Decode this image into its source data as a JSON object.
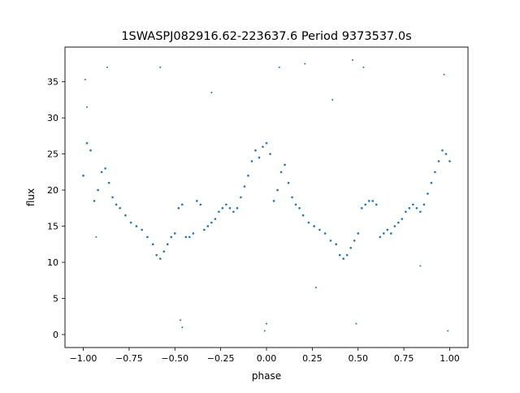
{
  "chart_data": {
    "type": "scatter",
    "title": "1SWASPJ082916.62-223637.6 Period 9373537.0s",
    "xlabel": "phase",
    "ylabel": "flux",
    "xlim": [
      -1.1,
      1.1
    ],
    "ylim": [
      -1.8,
      39.8
    ],
    "xticks": [
      -1.0,
      -0.75,
      -0.5,
      -0.25,
      0.0,
      0.25,
      0.5,
      0.75,
      1.0
    ],
    "xtick_labels": [
      "−1.00",
      "−0.75",
      "−0.50",
      "−0.25",
      "0.00",
      "0.25",
      "0.50",
      "0.75",
      "1.00"
    ],
    "yticks": [
      0,
      5,
      10,
      15,
      20,
      25,
      30,
      35
    ],
    "ytick_labels": [
      "0",
      "5",
      "10",
      "15",
      "20",
      "25",
      "30",
      "35"
    ],
    "grid": false,
    "point_color": "#1f77b4",
    "series": [
      {
        "x": [
          -1.0,
          -0.98,
          -0.96,
          -0.94,
          -0.92,
          -0.9,
          -0.88,
          -0.86,
          -0.84,
          -0.82,
          -0.8,
          -0.77,
          -0.74,
          -0.71,
          -0.68,
          -0.65,
          -0.62,
          -0.6,
          -0.58,
          -0.56,
          -0.54,
          -0.52,
          -0.5,
          -0.48,
          -0.46,
          -0.44,
          -0.42,
          -0.4,
          -0.38,
          -0.36,
          -0.34,
          -0.32,
          -0.3,
          -0.28,
          -0.26,
          -0.24,
          -0.22,
          -0.2,
          -0.18,
          -0.16,
          -0.14,
          -0.12,
          -0.1,
          -0.08,
          -0.06,
          -0.04,
          -0.02,
          0.0,
          0.02,
          0.04,
          0.06,
          0.08,
          0.1,
          0.12,
          0.14,
          0.16,
          0.18,
          0.2,
          0.23,
          0.26,
          0.29,
          0.32,
          0.35,
          0.38,
          0.4,
          0.42,
          0.44,
          0.46,
          0.48,
          0.5,
          0.52,
          0.54,
          0.56,
          0.58,
          0.6,
          0.62,
          0.64,
          0.66,
          0.68,
          0.7,
          0.72,
          0.74,
          0.76,
          0.78,
          0.8,
          0.82,
          0.84,
          0.86,
          0.88,
          0.9,
          0.92,
          0.94,
          0.96,
          0.98,
          1.0
        ],
        "y": [
          22.0,
          26.5,
          25.5,
          18.5,
          20.0,
          22.5,
          23.0,
          21.0,
          19.0,
          18.0,
          17.5,
          16.5,
          15.5,
          15.0,
          14.5,
          13.5,
          12.5,
          11.0,
          10.5,
          11.5,
          12.5,
          13.5,
          14.0,
          17.5,
          18.0,
          13.5,
          13.5,
          14.0,
          18.5,
          18.0,
          14.5,
          15.0,
          15.5,
          16.0,
          17.0,
          17.5,
          18.0,
          17.5,
          17.0,
          17.5,
          19.0,
          20.5,
          22.0,
          24.0,
          25.5,
          24.5,
          26.0,
          26.5,
          25.0,
          18.5,
          20.0,
          22.5,
          23.5,
          21.0,
          19.0,
          18.0,
          17.5,
          16.5,
          15.5,
          15.0,
          14.5,
          14.0,
          13.0,
          12.5,
          11.0,
          10.5,
          11.0,
          12.0,
          13.0,
          14.0,
          17.5,
          18.0,
          18.5,
          18.5,
          18.0,
          13.5,
          14.0,
          14.5,
          14.0,
          15.0,
          15.5,
          16.0,
          17.0,
          17.5,
          18.0,
          17.5,
          17.0,
          18.0,
          19.5,
          21.0,
          22.5,
          24.0,
          25.5,
          25.0,
          24.0
        ]
      }
    ],
    "outliers": {
      "x": [
        -0.99,
        -0.93,
        -0.87,
        -0.58,
        -0.47,
        -0.46,
        -0.3,
        -0.01,
        0.0,
        0.07,
        0.21,
        0.27,
        0.47,
        0.49,
        0.53,
        0.84,
        0.97,
        0.99,
        -0.98,
        0.36
      ],
      "y": [
        35.3,
        13.5,
        37.0,
        37.0,
        2.0,
        1.0,
        33.5,
        0.5,
        1.5,
        37.0,
        37.5,
        6.5,
        38.0,
        1.5,
        37.0,
        9.5,
        36.0,
        0.5,
        31.5,
        32.5
      ]
    }
  }
}
